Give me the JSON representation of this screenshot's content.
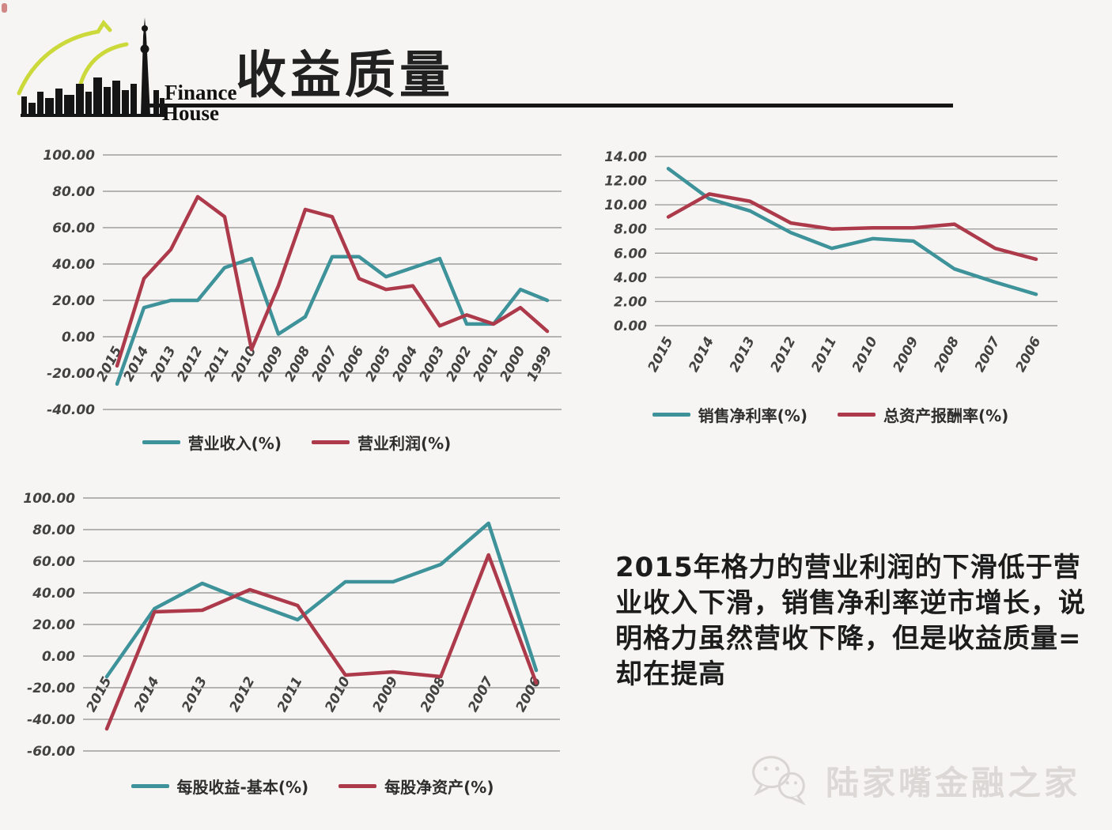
{
  "header": {
    "title": "收益质量",
    "logo_line1": "Finance",
    "logo_line2": "House"
  },
  "chart_data": [
    {
      "type": "line",
      "title": "",
      "categories": [
        "2015",
        "2014",
        "2013",
        "2012",
        "2011",
        "2010",
        "2009",
        "2008",
        "2007",
        "2006",
        "2005",
        "2004",
        "2003",
        "2002",
        "2001",
        "2000",
        "1999"
      ],
      "series": [
        {
          "name": "营业收入(%)",
          "color": "#3E939B",
          "values": [
            -26,
            16,
            20,
            20,
            38,
            43,
            1.5,
            11,
            44,
            44,
            33,
            38,
            43,
            7,
            7,
            26,
            20
          ]
        },
        {
          "name": "营业利润(%)",
          "color": "#AD3A4B",
          "values": [
            -16,
            32,
            48,
            77,
            66,
            -7,
            28,
            70,
            66,
            32,
            26,
            28,
            6,
            12,
            7,
            16,
            3
          ]
        }
      ],
      "ylim": [
        -40,
        100
      ],
      "ytick": 20,
      "grid": true,
      "legend_position": "bottom"
    },
    {
      "type": "line",
      "title": "",
      "categories": [
        "2015",
        "2014",
        "2013",
        "2012",
        "2011",
        "2010",
        "2009",
        "2008",
        "2007",
        "2006"
      ],
      "series": [
        {
          "name": "销售净利率(%)",
          "color": "#3E939B",
          "values": [
            13.0,
            10.5,
            9.5,
            7.7,
            6.4,
            7.2,
            7.0,
            4.7,
            3.6,
            2.6
          ]
        },
        {
          "name": "总资产报酬率(%)",
          "color": "#AD3A4B",
          "values": [
            9.0,
            10.9,
            10.3,
            8.5,
            8.0,
            8.1,
            8.1,
            8.4,
            6.4,
            5.5
          ]
        }
      ],
      "ylim": [
        0,
        14
      ],
      "ytick": 2,
      "grid": true,
      "legend_position": "bottom"
    },
    {
      "type": "line",
      "title": "",
      "categories": [
        "2015",
        "2014",
        "2013",
        "2012",
        "2011",
        "2010",
        "2009",
        "2008",
        "2007",
        "2006"
      ],
      "series": [
        {
          "name": "每股收益-基本(%)",
          "color": "#3E939B",
          "values": [
            -13,
            30,
            46,
            34,
            23,
            47,
            47,
            58,
            84,
            -9
          ]
        },
        {
          "name": "每股净资产(%)",
          "color": "#AD3A4B",
          "values": [
            -46,
            28,
            29,
            42,
            32,
            -12,
            -10,
            -13,
            64,
            -17
          ]
        }
      ],
      "ylim": [
        -60,
        100
      ],
      "ytick": 20,
      "grid": true,
      "legend_position": "bottom"
    }
  ],
  "annotation": {
    "lines": [
      "2015年格力的营业利润的下滑低于营",
      "业收入下滑，销售净利率逆市增长，说",
      "明格力虽然营收下降，但是收益质量=",
      "却在提高"
    ]
  },
  "watermark": {
    "text": "陆家嘴金融之家",
    "icon": "wechat-icon"
  }
}
